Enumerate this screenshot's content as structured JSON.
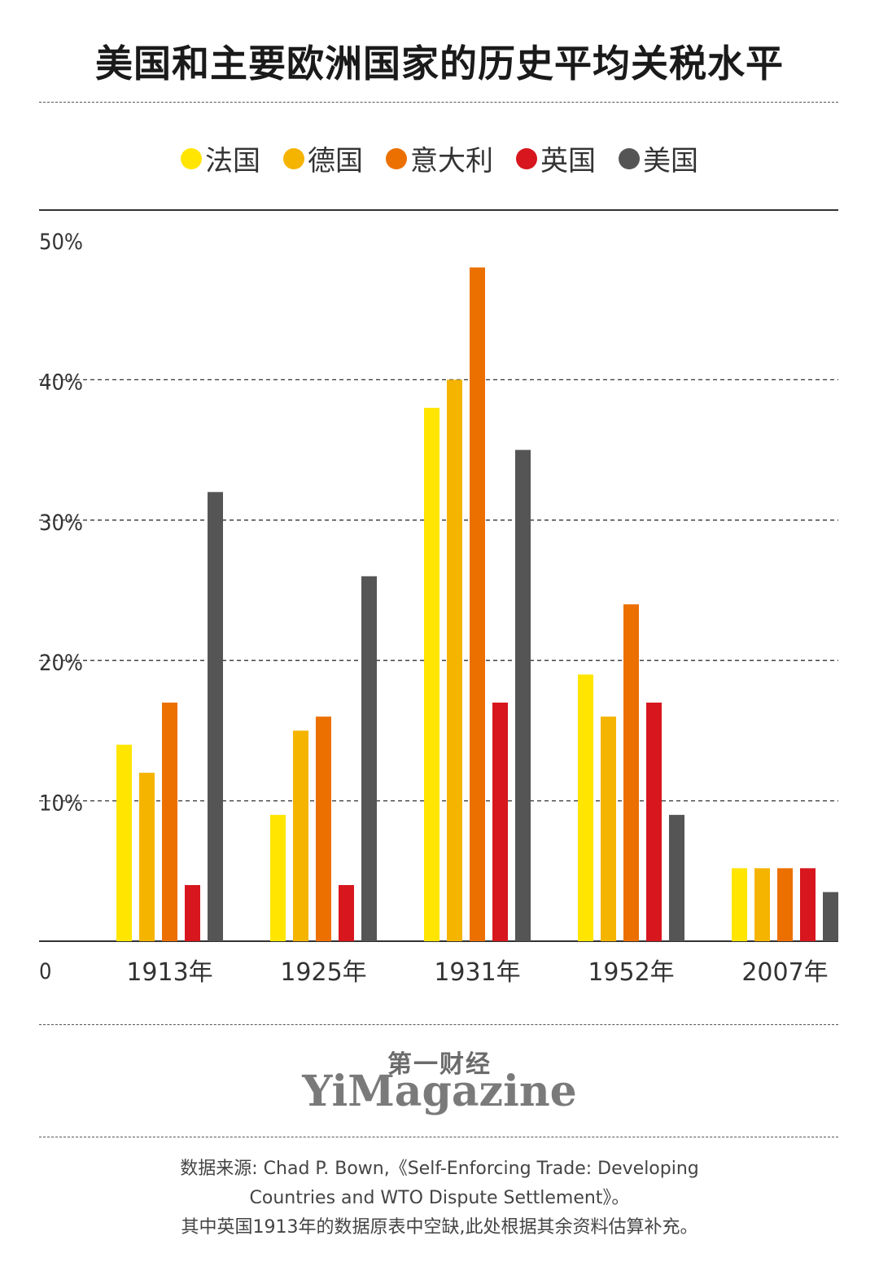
{
  "title": "美国和主要欧洲国家的历史平均关税水平",
  "legend": [
    {
      "label": "法国",
      "color": "#ffe500"
    },
    {
      "label": "德国",
      "color": "#f5b400"
    },
    {
      "label": "意大利",
      "color": "#ec7000"
    },
    {
      "label": "英国",
      "color": "#d7161e"
    },
    {
      "label": "美国",
      "color": "#555555"
    }
  ],
  "chart_data": {
    "type": "bar",
    "title": "美国和主要欧洲国家的历史平均关税水平",
    "categories": [
      "1913年",
      "1925年",
      "1931年",
      "1952年",
      "2007年"
    ],
    "series": [
      {
        "name": "法国",
        "color": "#ffe500",
        "values": [
          14,
          9,
          38,
          19,
          5.2
        ]
      },
      {
        "name": "德国",
        "color": "#f5b400",
        "values": [
          12,
          15,
          40,
          16,
          5.2
        ]
      },
      {
        "name": "意大利",
        "color": "#ec7000",
        "values": [
          17,
          16,
          48,
          24,
          5.2
        ]
      },
      {
        "name": "英国",
        "color": "#d7161e",
        "values": [
          4,
          4,
          17,
          17,
          5.2
        ]
      },
      {
        "name": "美国",
        "color": "#555555",
        "values": [
          32,
          26,
          35,
          9,
          3.5
        ]
      }
    ],
    "y_ticks": [
      {
        "value": 0,
        "label": "0"
      },
      {
        "value": 10,
        "label": "10%"
      },
      {
        "value": 20,
        "label": "20%"
      },
      {
        "value": 30,
        "label": "30%"
      },
      {
        "value": 40,
        "label": "40%"
      },
      {
        "value": 50,
        "label": "50%"
      }
    ],
    "ylim": [
      0,
      50
    ],
    "grid": true,
    "legend_position": "top"
  },
  "brand": {
    "cn": "第一财经",
    "en": "YiMagazine"
  },
  "source": {
    "line1": "数据来源: Chad P. Bown,《Self-Enforcing Trade: Developing",
    "line2": "Countries and WTO Dispute Settlement》。",
    "line3": "其中英国1913年的数据原表中空缺,此处根据其余资料估算补充。"
  }
}
